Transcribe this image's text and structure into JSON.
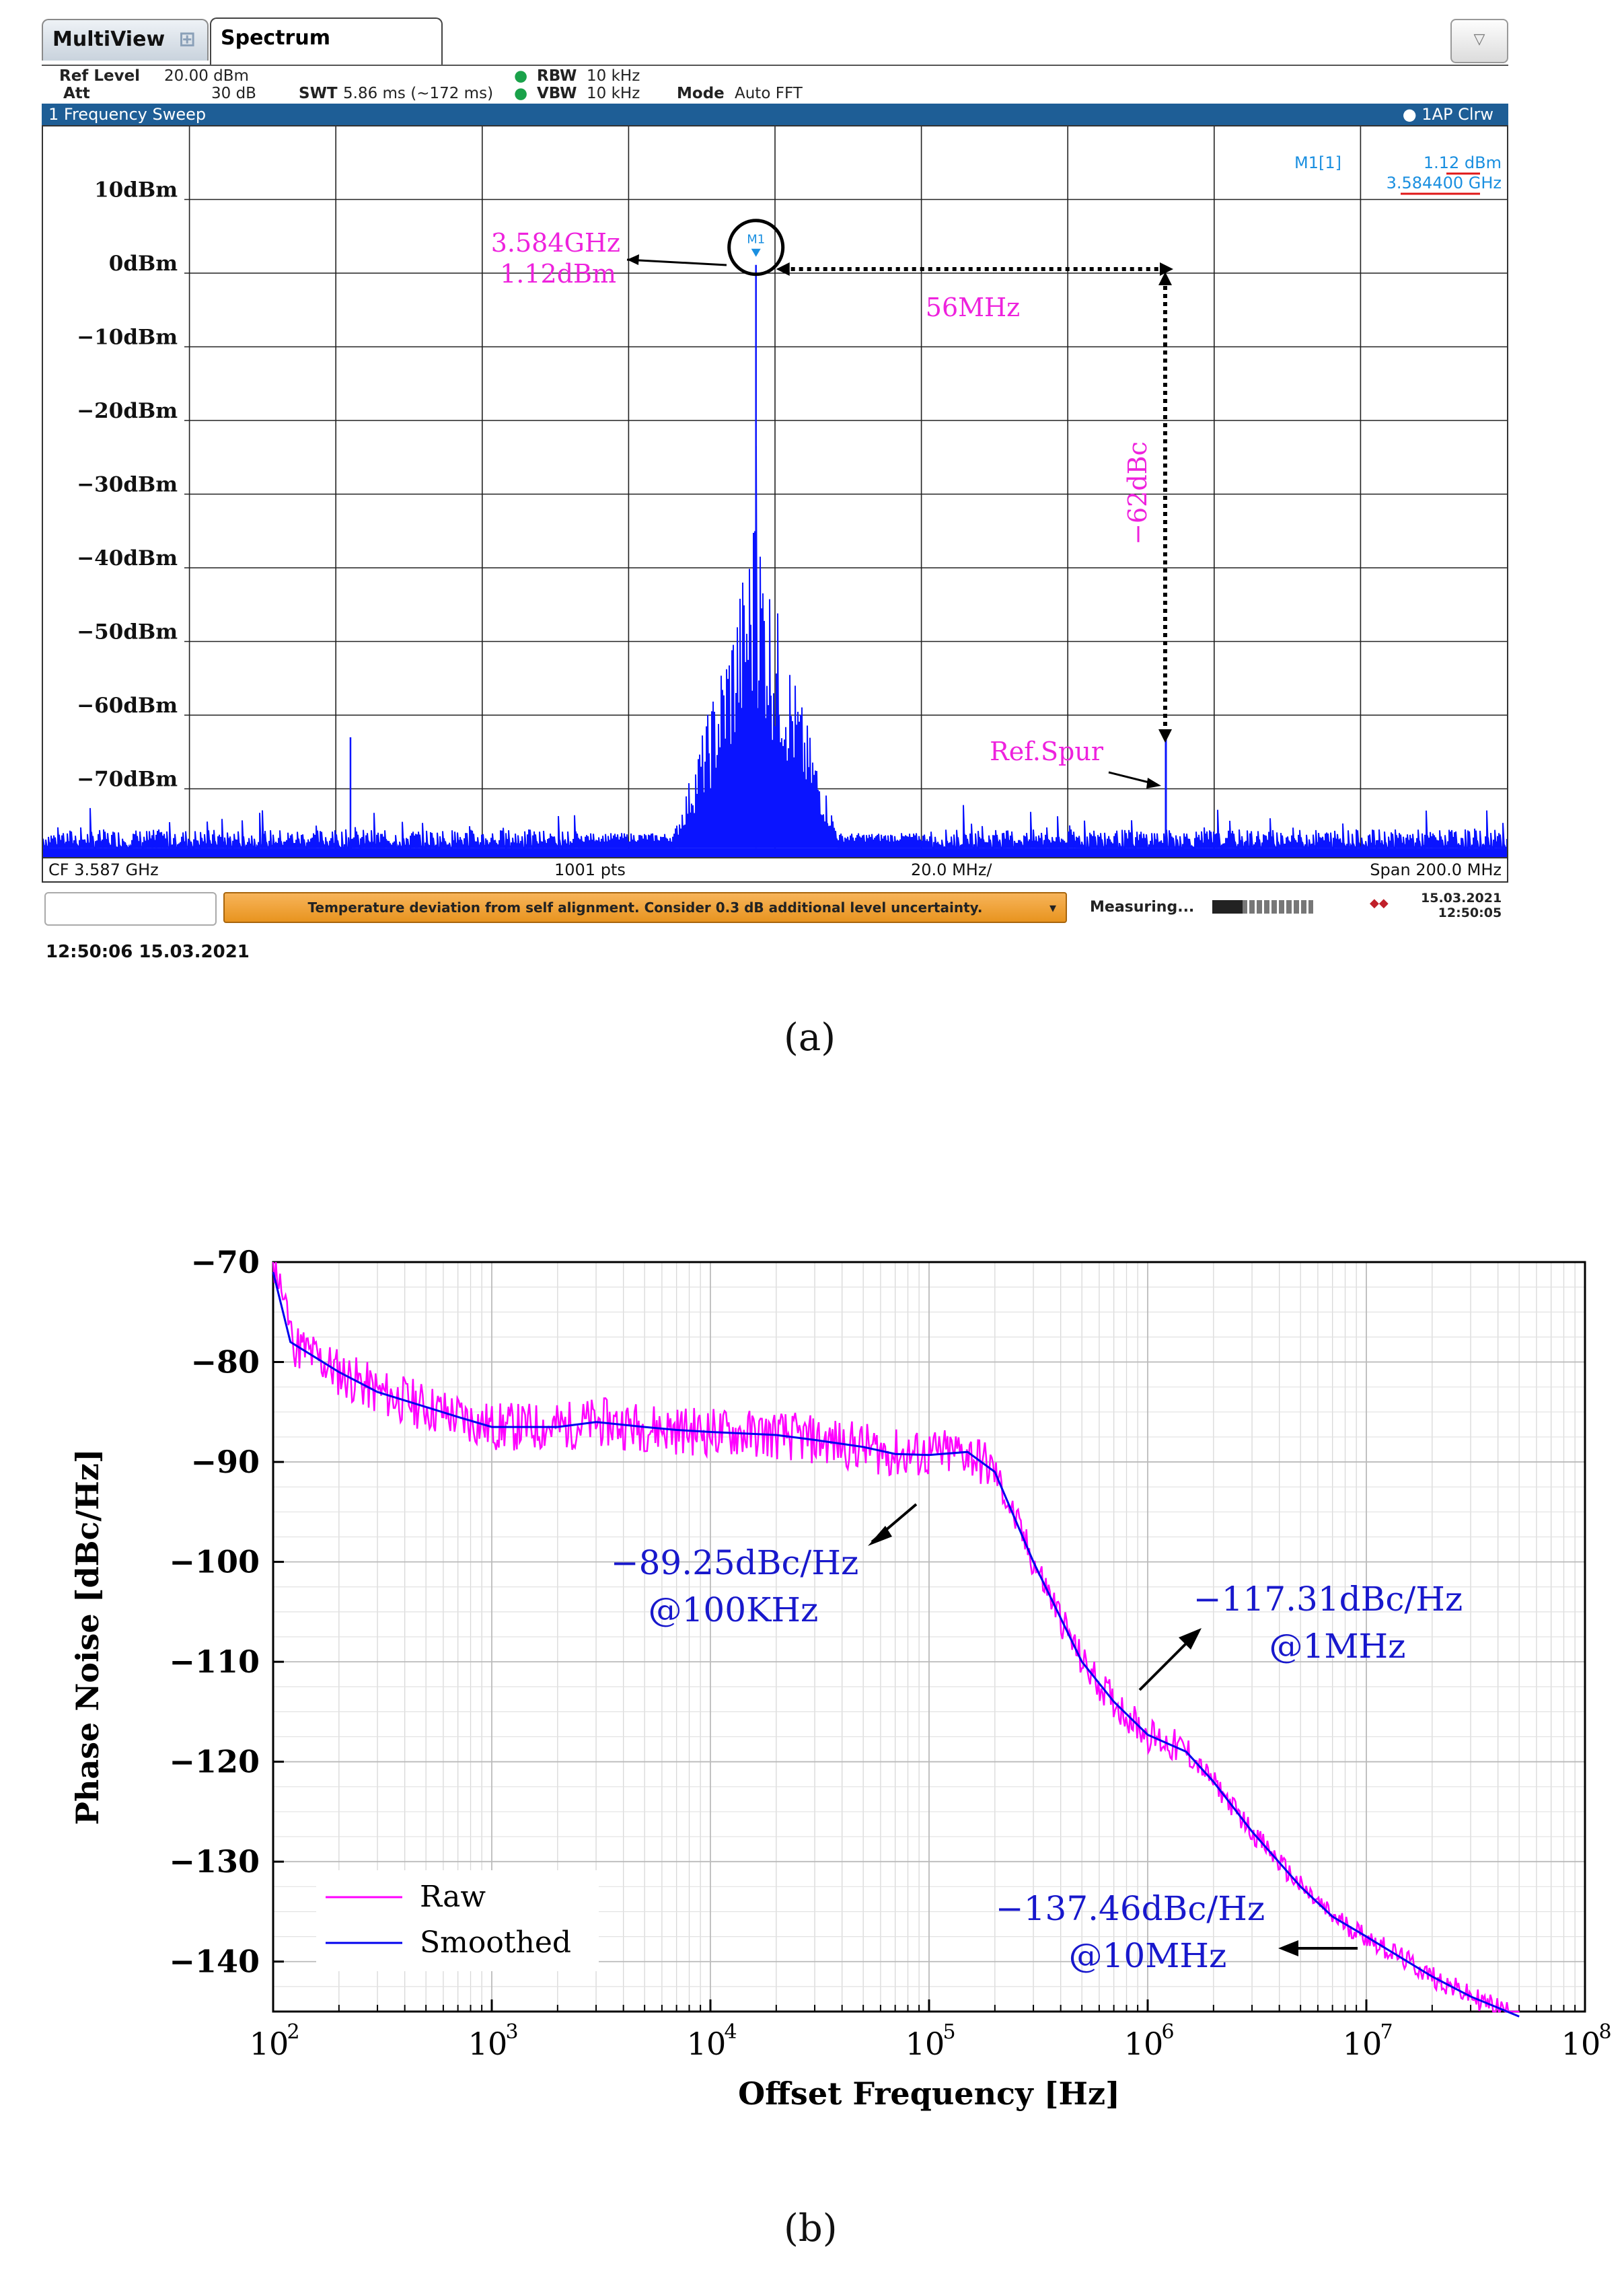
{
  "analyzer": {
    "tabs": [
      {
        "label": "MultiView"
      },
      {
        "label": "Spectrum"
      }
    ],
    "dropdown_glyph": "▽",
    "settings": {
      "ref_level_label": "Ref Level",
      "ref_level_value": "20.00 dBm",
      "att_label": "Att",
      "att_value": "30 dB",
      "swt_label": "SWT",
      "swt_value": "5.86 ms (~172 ms)",
      "rbw_label": "RBW",
      "rbw_value": "10 kHz",
      "vbw_label": "VBW",
      "vbw_value": "10 kHz",
      "mode_label": "Mode",
      "mode_value": "Auto FFT"
    },
    "sweep_title": "1 Frequency Sweep",
    "trace_label": "1AP Clrw",
    "marker": {
      "name": "M1[1]",
      "level": "1.12 dBm",
      "freq": "3.584400 GHz",
      "tag": "M1"
    },
    "annotations": {
      "marker_freq": "3.584GHz",
      "marker_level": "1.12dBm",
      "offset": "56MHz",
      "spur_level": "−62dBc",
      "spur_label": "Ref.Spur"
    },
    "footer": {
      "cf": "CF 3.587 GHz",
      "pts": "1001 pts",
      "div": "20.0 MHz/",
      "span": "Span 200.0 MHz"
    },
    "status": {
      "warning": "Temperature deviation from self alignment. Consider 0.3 dB additional level uncertainty.",
      "measuring": "Measuring...",
      "progress_fraction": 0.3,
      "date": "15.03.2021",
      "time": "12:50:05"
    },
    "timestamp": "12:50:06 15.03.2021",
    "trace_color": "#0a14ff",
    "annotation_color": "#ee22dd"
  },
  "captions": {
    "a": "(a)",
    "b": "(b)"
  },
  "chart_data": [
    {
      "type": "line",
      "title": "1 Frequency Sweep",
      "xlabel": "",
      "ylabel": "",
      "xlim": [
        3.487,
        3.687
      ],
      "ylim": [
        -80,
        20
      ],
      "y_ticks": [
        10,
        0,
        -10,
        -20,
        -30,
        -40,
        -50,
        -60,
        -70
      ],
      "y_tick_labels": [
        "10dBm",
        "0dBm",
        "−10dBm",
        "−20dBm",
        "−30dBm",
        "−40dBm",
        "−50dBm",
        "−60dBm",
        "−70dBm"
      ],
      "x_divisions": 10,
      "grid": true,
      "series": [
        {
          "name": "1AP Clrw",
          "carrier_freq_ghz": 3.5844,
          "carrier_level_dbm": 1.12,
          "noise_floor_dbm": -78,
          "spur_freq_ghz": 3.6404,
          "spur_level_dbm": -62,
          "left_spur_freq_ghz": 3.529,
          "left_spur_level_dbm": -63
        }
      ]
    },
    {
      "type": "line",
      "title": "",
      "xlabel": "Offset Frequency [Hz]",
      "ylabel": "Phase Noise [dBc/Hz]",
      "xscale": "log",
      "xlim": [
        100,
        100000000
      ],
      "ylim": [
        -145,
        -70
      ],
      "x_ticks": [
        2,
        3,
        4,
        5,
        6,
        7,
        8
      ],
      "x_tick_base": "10",
      "y_ticks": [
        -70,
        -80,
        -90,
        -100,
        -110,
        -120,
        -130,
        -140
      ],
      "y_tick_labels": [
        "−70",
        "−80",
        "−90",
        "−100",
        "−110",
        "−120",
        "−130",
        "−140"
      ],
      "grid": true,
      "legend": {
        "position": "bottom-left",
        "entries": [
          "Raw",
          "Smoothed"
        ]
      },
      "series": [
        {
          "name": "Raw",
          "color": "#ff00ff"
        },
        {
          "name": "Smoothed",
          "color": "#0000ee",
          "x": [
            100,
            120,
            200,
            300,
            500,
            700,
            1000,
            1500,
            2000,
            3000,
            5000,
            7000,
            10000,
            20000,
            30000,
            50000,
            70000,
            100000,
            150000,
            200000,
            300000,
            500000,
            700000,
            1000000,
            1500000,
            2000000,
            3000000,
            5000000,
            7000000,
            10000000,
            20000000,
            30000000,
            50000000
          ],
          "y": [
            -71,
            -78,
            -81,
            -83,
            -84.5,
            -85.5,
            -86.5,
            -86.5,
            -86.5,
            -86,
            -86.5,
            -86.8,
            -87,
            -87.3,
            -87.8,
            -88.5,
            -89.2,
            -89.3,
            -89,
            -91,
            -100,
            -110,
            -114,
            -117.3,
            -119,
            -122,
            -127,
            -132.5,
            -135.5,
            -137.5,
            -141.5,
            -143.5,
            -145.5
          ]
        }
      ],
      "annotations": [
        {
          "text": "−89.25dBc/Hz",
          "sub": "@100KHz"
        },
        {
          "text": "−117.31dBc/Hz",
          "sub": "@1MHz"
        },
        {
          "text": "−137.46dBc/Hz",
          "sub": "@10MHz"
        }
      ]
    }
  ]
}
